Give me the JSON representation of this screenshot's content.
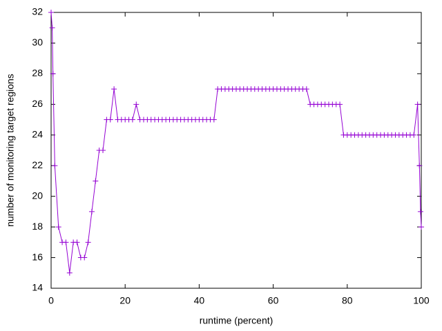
{
  "chart_data": {
    "type": "line",
    "xlabel": "runtime (percent)",
    "ylabel": "number of monitoring target regions",
    "x": [
      0,
      0.3,
      0.5,
      1,
      2,
      3,
      4,
      5,
      6,
      7,
      8,
      9,
      10,
      11,
      12,
      13,
      14,
      15,
      16,
      17,
      18,
      19,
      20,
      21,
      22,
      23,
      24,
      25,
      26,
      27,
      28,
      29,
      30,
      31,
      32,
      33,
      34,
      35,
      36,
      37,
      38,
      39,
      40,
      41,
      42,
      43,
      44,
      45,
      46,
      47,
      48,
      49,
      50,
      51,
      52,
      53,
      54,
      55,
      56,
      57,
      58,
      59,
      60,
      61,
      62,
      63,
      64,
      65,
      66,
      67,
      68,
      69,
      70,
      71,
      72,
      73,
      74,
      75,
      76,
      77,
      78,
      79,
      80,
      81,
      82,
      83,
      84,
      85,
      86,
      87,
      88,
      89,
      90,
      91,
      92,
      93,
      94,
      95,
      96,
      97,
      98,
      99,
      99.5,
      99.8,
      100
    ],
    "values": [
      32,
      31,
      28,
      22,
      18,
      17,
      17,
      15,
      17,
      17,
      16,
      16,
      17,
      19,
      21,
      23,
      23,
      25,
      25,
      27,
      25,
      25,
      25,
      25,
      25,
      26,
      25,
      25,
      25,
      25,
      25,
      25,
      25,
      25,
      25,
      25,
      25,
      25,
      25,
      25,
      25,
      25,
      25,
      25,
      25,
      25,
      25,
      27,
      27,
      27,
      27,
      27,
      27,
      27,
      27,
      27,
      27,
      27,
      27,
      27,
      27,
      27,
      27,
      27,
      27,
      27,
      27,
      27,
      27,
      27,
      27,
      27,
      26,
      26,
      26,
      26,
      26,
      26,
      26,
      26,
      26,
      24,
      24,
      24,
      24,
      24,
      24,
      24,
      24,
      24,
      24,
      24,
      24,
      24,
      24,
      24,
      24,
      24,
      24,
      24,
      24,
      26,
      22,
      19,
      18
    ],
    "color": "#9400d3",
    "xlim": [
      0,
      100
    ],
    "xticks": [
      0,
      20,
      40,
      60,
      80,
      100
    ],
    "ylim": [
      14,
      32
    ],
    "yticks": [
      14,
      16,
      18,
      20,
      22,
      24,
      26,
      28,
      30,
      32
    ]
  }
}
